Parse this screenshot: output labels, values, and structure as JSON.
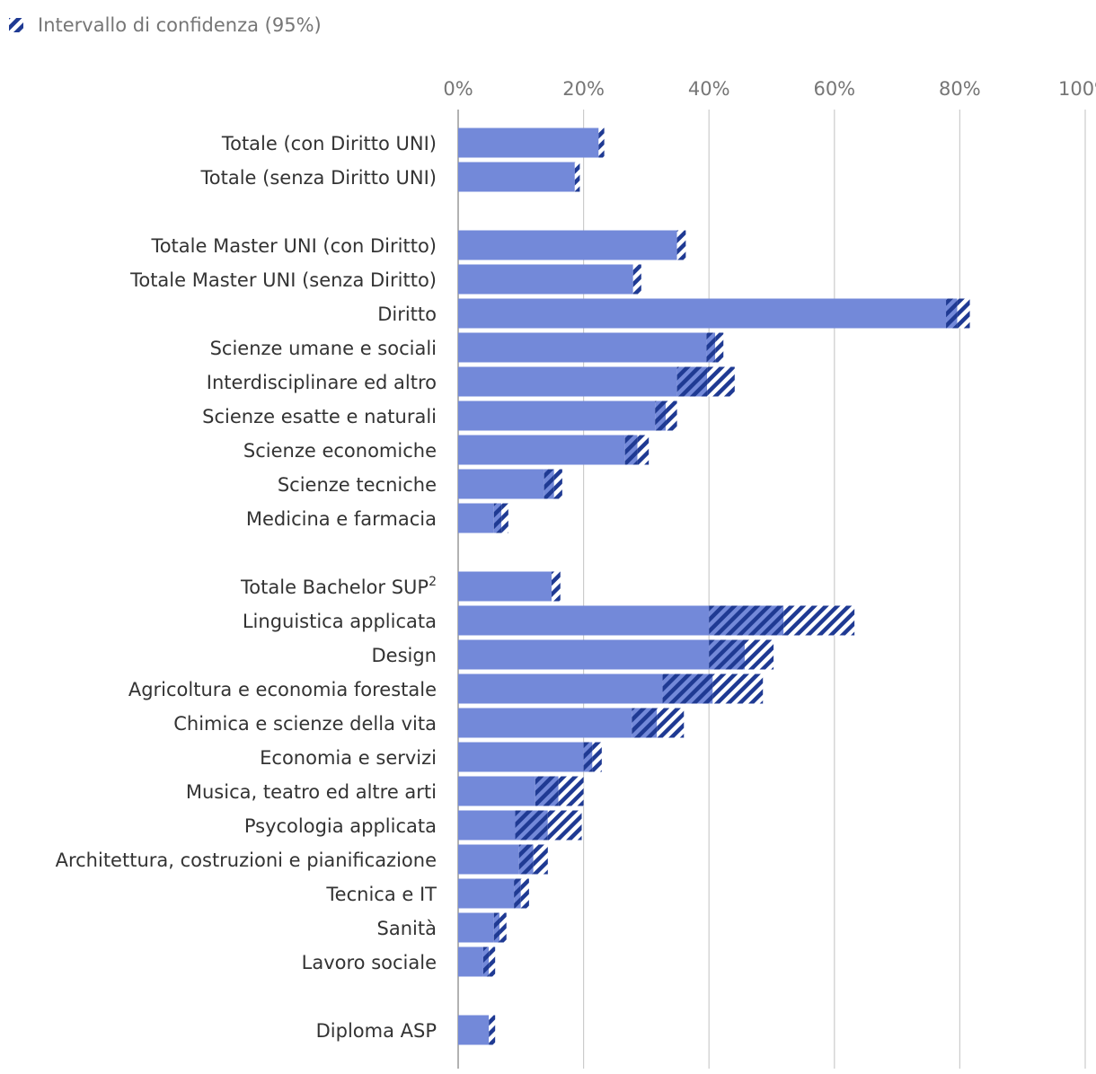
{
  "chart_data": {
    "type": "bar",
    "orientation": "horizontal",
    "legend": {
      "label": "Intervallo di confidenza (95%)",
      "position": "top-left"
    },
    "xlim": [
      0,
      100
    ],
    "x_ticks": [
      "0%",
      "20%",
      "40%",
      "60%",
      "80%",
      "100%"
    ],
    "x_tick_values": [
      0,
      20,
      40,
      60,
      80,
      100
    ],
    "grid": true,
    "colors": {
      "bar": "#7389d9",
      "ci": "#1f3a93",
      "ci_bg": "#ffffff",
      "grid": "#cccccc",
      "axis": "#999999"
    },
    "groups": [
      {
        "items": [
          {
            "label": "Totale (con Diritto UNI)",
            "value": 22.4,
            "ci_low": 22.4,
            "ci_high": 23.3
          },
          {
            "label": "Totale (senza Diritto UNI)",
            "value": 18.6,
            "ci_low": 18.6,
            "ci_high": 19.4
          }
        ]
      },
      {
        "items": [
          {
            "label": "Totale Master UNI (con Diritto)",
            "value": 34.9,
            "ci_low": 34.9,
            "ci_high": 36.3
          },
          {
            "label": "Totale Master UNI (senza Diritto)",
            "value": 27.9,
            "ci_low": 27.9,
            "ci_high": 29.2
          },
          {
            "label": "Diritto",
            "value": 77.8,
            "ci_low": 79.6,
            "ci_high": 81.6
          },
          {
            "label": "Scienze umane e sociali",
            "value": 39.6,
            "ci_low": 41.0,
            "ci_high": 42.3
          },
          {
            "label": "Interdisciplinare ed altro",
            "value": 34.9,
            "ci_low": 39.7,
            "ci_high": 44.1
          },
          {
            "label": "Scienze esatte e naturali",
            "value": 31.4,
            "ci_low": 33.1,
            "ci_high": 34.9
          },
          {
            "label": "Scienze economiche",
            "value": 26.6,
            "ci_low": 28.6,
            "ci_high": 30.4
          },
          {
            "label": "Scienze tecniche",
            "value": 13.7,
            "ci_low": 15.3,
            "ci_high": 16.6
          },
          {
            "label": "Medicina e farmacia",
            "value": 5.7,
            "ci_low": 6.9,
            "ci_high": 8.0
          }
        ]
      },
      {
        "superscript": {
          "Totale Bachelor SUP": "2"
        },
        "items": [
          {
            "label": "Totale Bachelor SUP",
            "label_sup": "2",
            "value": 14.9,
            "ci_low": 14.9,
            "ci_high": 16.3
          },
          {
            "label": "Linguistica applicata",
            "value": 40.0,
            "ci_low": 51.9,
            "ci_high": 63.2
          },
          {
            "label": "Design",
            "value": 40.0,
            "ci_low": 45.7,
            "ci_high": 50.3
          },
          {
            "label": "Agricoltura e economia forestale",
            "value": 32.6,
            "ci_low": 40.6,
            "ci_high": 48.6
          },
          {
            "label": "Chimica e scienze della vita",
            "value": 27.7,
            "ci_low": 31.7,
            "ci_high": 36.0
          },
          {
            "label": "Economia e servizi",
            "value": 20.0,
            "ci_low": 21.4,
            "ci_high": 22.9
          },
          {
            "label": "Musica, teatro ed altre arti",
            "value": 12.3,
            "ci_low": 16.0,
            "ci_high": 20.0
          },
          {
            "label": "Psycologia applicata",
            "value": 9.1,
            "ci_low": 14.3,
            "ci_high": 19.7
          },
          {
            "label": "Architettura, costruzioni e pianificazione",
            "value": 9.7,
            "ci_low": 12.0,
            "ci_high": 14.3
          },
          {
            "label": "Tecnica e IT",
            "value": 8.9,
            "ci_low": 10.0,
            "ci_high": 11.3
          },
          {
            "label": "Sanità",
            "value": 5.7,
            "ci_low": 6.6,
            "ci_high": 7.7
          },
          {
            "label": "Lavoro sociale",
            "value": 4.0,
            "ci_low": 4.9,
            "ci_high": 5.9
          }
        ]
      },
      {
        "items": [
          {
            "label": "Diploma ASP",
            "value": 4.9,
            "ci_low": 4.9,
            "ci_high": 5.9
          }
        ]
      }
    ]
  }
}
